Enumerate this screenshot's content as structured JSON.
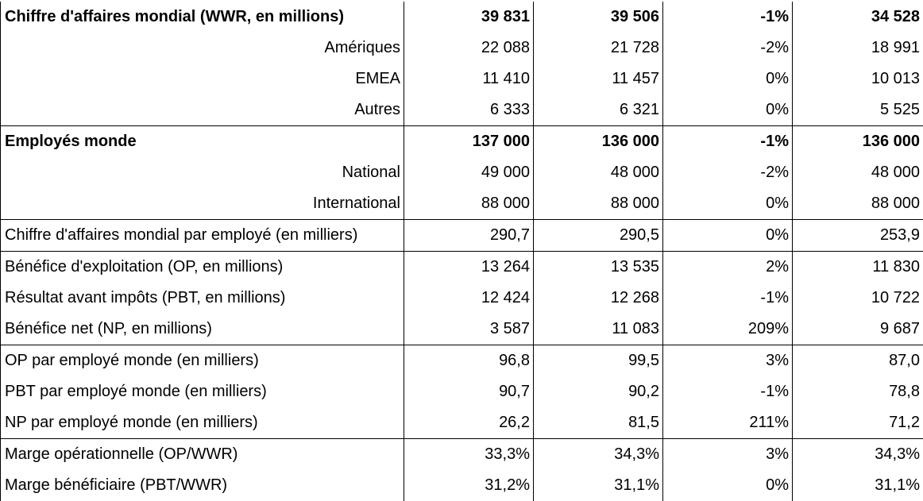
{
  "rows": [
    {
      "label": "Chiffre d'affaires mondial (WWR, en millions)",
      "v1": "39 831",
      "v2": "39 506",
      "var": "-1%",
      "v3": "34 528"
    },
    {
      "label": "Amériques",
      "v1": "22 088",
      "v2": "21 728",
      "var": "-2%",
      "v3": "18 991"
    },
    {
      "label": "EMEA",
      "v1": "11 410",
      "v2": "11 457",
      "var": "0%",
      "v3": "10 013"
    },
    {
      "label": "Autres",
      "v1": "6 333",
      "v2": "6 321",
      "var": "0%",
      "v3": "5 525"
    },
    {
      "label": "Employés monde",
      "v1": "137 000",
      "v2": "136 000",
      "var": "-1%",
      "v3": "136 000"
    },
    {
      "label": "National",
      "v1": "49 000",
      "v2": "48 000",
      "var": "-2%",
      "v3": "48 000"
    },
    {
      "label": "International",
      "v1": "88 000",
      "v2": "88 000",
      "var": "0%",
      "v3": "88 000"
    },
    {
      "label": "Chiffre d'affaires mondial par employé (en milliers)",
      "v1": "290,7",
      "v2": "290,5",
      "var": "0%",
      "v3": "253,9"
    },
    {
      "label": "Bénéfice d'exploitation (OP, en millions)",
      "v1": "13 264",
      "v2": "13 535",
      "var": "2%",
      "v3": "11 830"
    },
    {
      "label": "Résultat avant impôts (PBT, en millions)",
      "v1": "12 424",
      "v2": "12 268",
      "var": "-1%",
      "v3": "10 722"
    },
    {
      "label": "Bénéfice net (NP, en millions)",
      "v1": "3 587",
      "v2": "11 083",
      "var": "209%",
      "v3": "9 687"
    },
    {
      "label": "OP par employé monde (en milliers)",
      "v1": "96,8",
      "v2": "99,5",
      "var": "3%",
      "v3": "87,0"
    },
    {
      "label": "PBT par employé monde (en milliers)",
      "v1": "90,7",
      "v2": "90,2",
      "var": "-1%",
      "v3": "78,8"
    },
    {
      "label": "NP par employé monde (en milliers)",
      "v1": "26,2",
      "v2": "81,5",
      "var": "211%",
      "v3": "71,2"
    },
    {
      "label": "Marge opérationnelle (OP/WWR)",
      "v1": "33,3%",
      "v2": "34,3%",
      "var": "3%",
      "v3": "34,3%"
    },
    {
      "label": "Marge bénéficiaire (PBT/WWR)",
      "v1": "31,2%",
      "v2": "31,1%",
      "var": "0%",
      "v3": "31,1%"
    }
  ]
}
